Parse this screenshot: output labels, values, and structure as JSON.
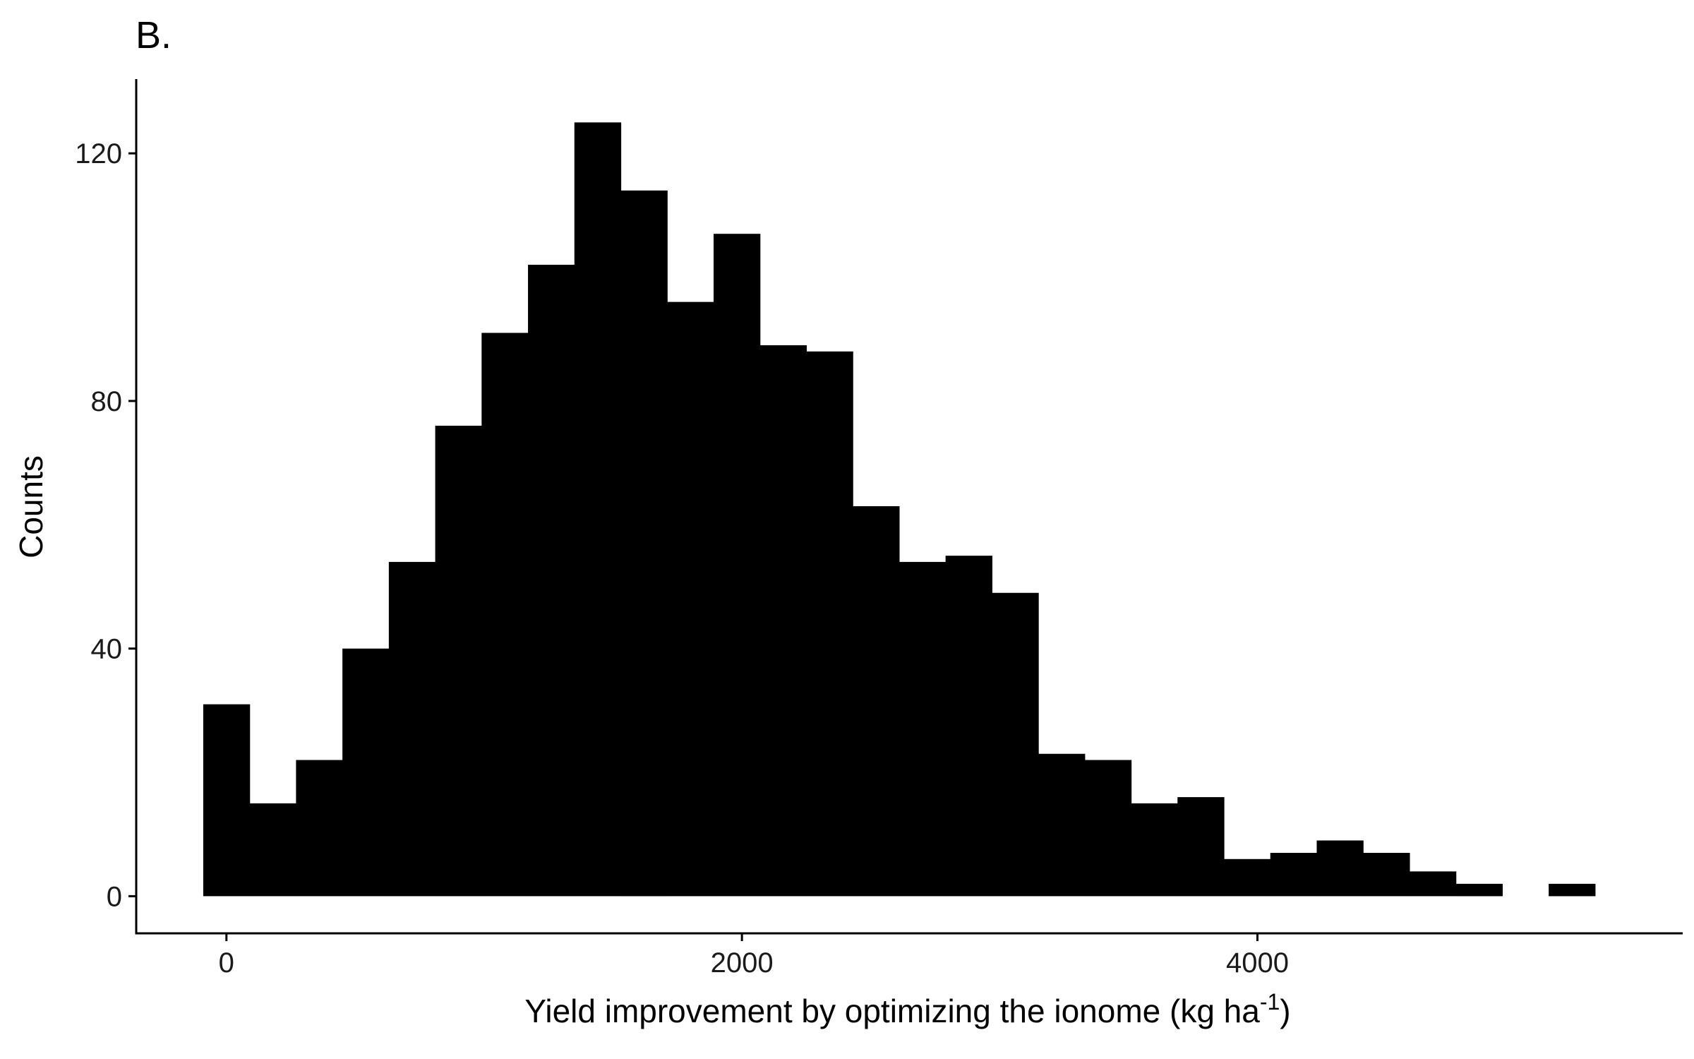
{
  "chart_data": {
    "type": "bar",
    "panel_tag": "B.",
    "xlabel": "Yield improvement by optimizing the ionome (kg ha",
    "xlabel_superscript": "-1",
    "xlabel_suffix": ")",
    "ylabel": "Counts",
    "xlim": [
      -350,
      5650
    ],
    "ylim": [
      -6,
      132
    ],
    "x_ticks": [
      {
        "value": 0,
        "label": "0"
      },
      {
        "value": 2000,
        "label": "2000"
      },
      {
        "value": 4000,
        "label": "4000"
      }
    ],
    "y_ticks": [
      {
        "value": 0,
        "label": "0"
      },
      {
        "value": 40,
        "label": "40"
      },
      {
        "value": 80,
        "label": "80"
      },
      {
        "value": 120,
        "label": "120"
      }
    ],
    "bin_width": 180,
    "bins": [
      {
        "x0": -90,
        "x1": 90,
        "count": 31
      },
      {
        "x0": 90,
        "x1": 270,
        "count": 15
      },
      {
        "x0": 270,
        "x1": 450,
        "count": 22
      },
      {
        "x0": 450,
        "x1": 630,
        "count": 40
      },
      {
        "x0": 630,
        "x1": 810,
        "count": 54
      },
      {
        "x0": 810,
        "x1": 990,
        "count": 76
      },
      {
        "x0": 990,
        "x1": 1170,
        "count": 91
      },
      {
        "x0": 1170,
        "x1": 1350,
        "count": 102
      },
      {
        "x0": 1350,
        "x1": 1530,
        "count": 125
      },
      {
        "x0": 1530,
        "x1": 1710,
        "count": 114
      },
      {
        "x0": 1710,
        "x1": 1890,
        "count": 96
      },
      {
        "x0": 1890,
        "x1": 2070,
        "count": 107
      },
      {
        "x0": 2070,
        "x1": 2250,
        "count": 89
      },
      {
        "x0": 2250,
        "x1": 2430,
        "count": 88
      },
      {
        "x0": 2430,
        "x1": 2610,
        "count": 63
      },
      {
        "x0": 2610,
        "x1": 2790,
        "count": 54
      },
      {
        "x0": 2790,
        "x1": 2970,
        "count": 55
      },
      {
        "x0": 2970,
        "x1": 3150,
        "count": 49
      },
      {
        "x0": 3150,
        "x1": 3330,
        "count": 23
      },
      {
        "x0": 3330,
        "x1": 3510,
        "count": 22
      },
      {
        "x0": 3510,
        "x1": 3690,
        "count": 15
      },
      {
        "x0": 3690,
        "x1": 3870,
        "count": 16
      },
      {
        "x0": 3870,
        "x1": 4050,
        "count": 6
      },
      {
        "x0": 4050,
        "x1": 4230,
        "count": 7
      },
      {
        "x0": 4230,
        "x1": 4410,
        "count": 9
      },
      {
        "x0": 4410,
        "x1": 4590,
        "count": 7
      },
      {
        "x0": 4590,
        "x1": 4770,
        "count": 4
      },
      {
        "x0": 4770,
        "x1": 4950,
        "count": 2
      },
      {
        "x0": 4950,
        "x1": 5130,
        "count": 0
      },
      {
        "x0": 5130,
        "x1": 5310,
        "count": 2
      }
    ],
    "bar_color": "#000000",
    "axis_color": "#000000",
    "grid": false,
    "legend": "none"
  }
}
